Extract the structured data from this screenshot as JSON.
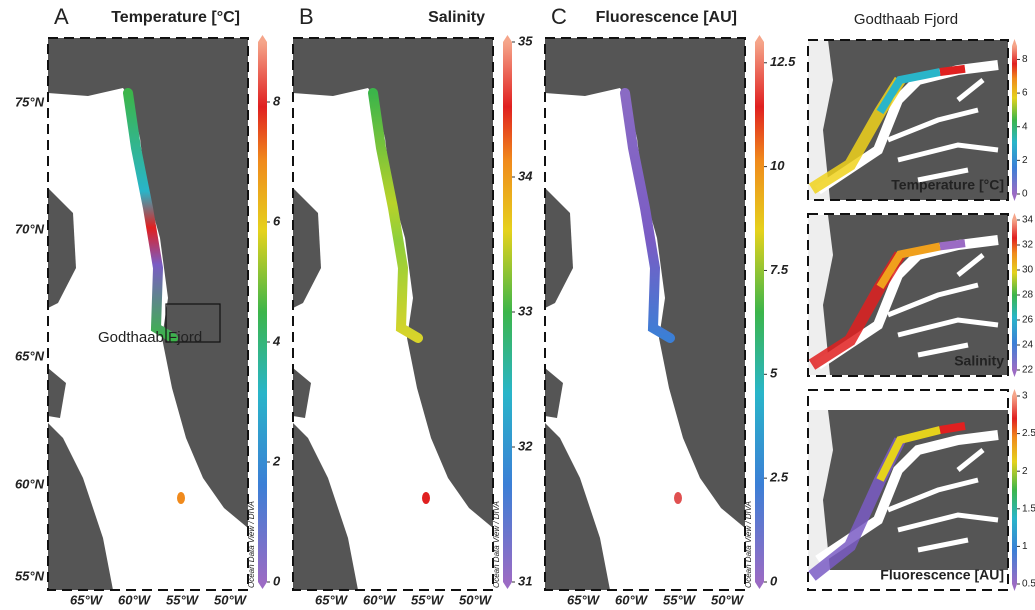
{
  "panels": [
    {
      "letter": "A",
      "title": "Temperature [°C]",
      "colorbar": {
        "lim": [
          0,
          9
        ],
        "ticks": [
          0,
          2,
          4,
          6,
          8
        ]
      },
      "credit": "Ocean Data View / DIVA"
    },
    {
      "letter": "B",
      "title": "Salinity",
      "colorbar": {
        "lim": [
          31,
          35
        ],
        "ticks": [
          31,
          32,
          33,
          34,
          35
        ]
      },
      "credit": "Ocean Data View / DIVA"
    },
    {
      "letter": "C",
      "title": "Fluorescence [AU]",
      "colorbar": {
        "lim": [
          0,
          13
        ],
        "ticks": [
          0,
          2.5,
          5,
          7.5,
          10,
          12.5
        ]
      },
      "credit": "Ocean Data View / DIVA"
    }
  ],
  "latitude_labels": [
    "75°N",
    "70°N",
    "65°N",
    "60°N",
    "55°N"
  ],
  "longitude_labels": [
    "65°W",
    "60°W",
    "55°W",
    "50°W"
  ],
  "region_label": "Godthaab Fjord",
  "insets": {
    "title": "Godthaab Fjord",
    "panels": [
      {
        "label": "Temperature [°C]",
        "colorbar": {
          "lim": [
            0,
            8.8
          ],
          "ticks": [
            0,
            2,
            4,
            6,
            8
          ]
        }
      },
      {
        "label": "Salinity",
        "colorbar": {
          "lim": [
            22,
            34
          ],
          "ticks": [
            22,
            24,
            26,
            28,
            30,
            32,
            34
          ]
        }
      },
      {
        "label": "Fluorescence [AU]",
        "colorbar": {
          "lim": [
            0.5,
            3
          ],
          "ticks": [
            0.5,
            1,
            1.5,
            2,
            2.5,
            3
          ]
        }
      }
    ]
  }
}
